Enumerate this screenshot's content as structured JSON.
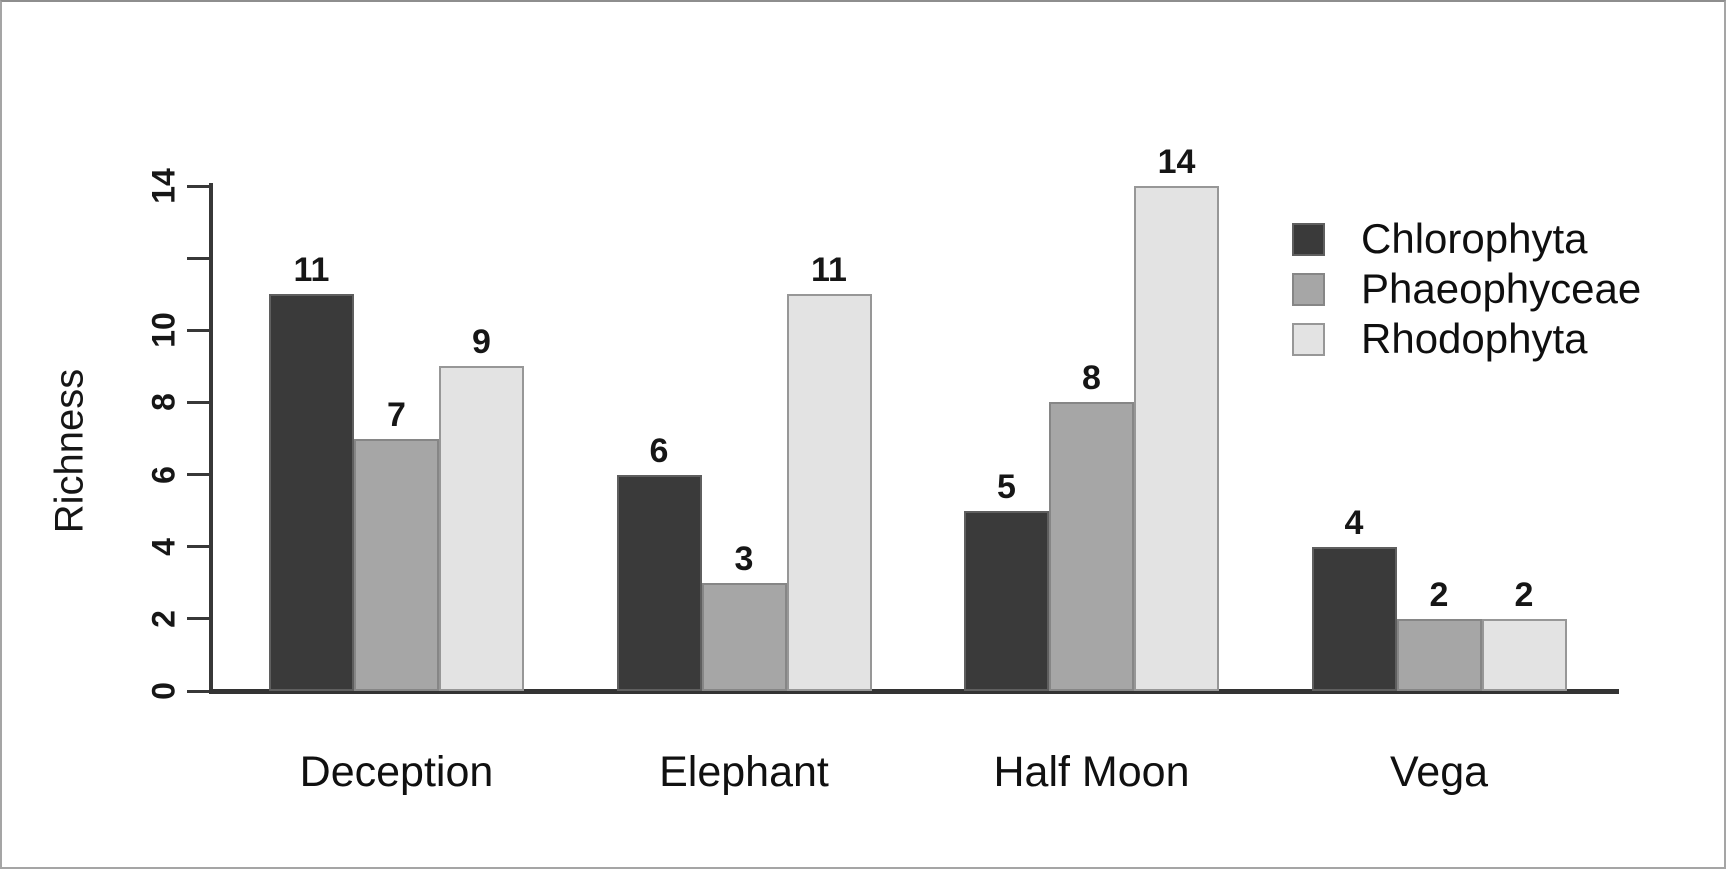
{
  "chart_data": {
    "type": "bar",
    "title": "",
    "xlabel": "",
    "ylabel": "Richness",
    "categories": [
      "Deception",
      "Elephant",
      "Half Moon",
      "Vega"
    ],
    "series": [
      {
        "name": "Chlorophyta",
        "color": "#3a3a3a",
        "values": [
          11,
          6,
          5,
          4
        ]
      },
      {
        "name": "Phaeophyceae",
        "color": "#a6a6a6",
        "values": [
          7,
          3,
          8,
          2
        ]
      },
      {
        "name": "Rhodophyta",
        "color": "#e3e3e3",
        "values": [
          9,
          11,
          14,
          2
        ]
      }
    ],
    "ylim": [
      0,
      14
    ],
    "yticks": [
      0,
      2,
      4,
      6,
      8,
      10,
      12,
      14
    ],
    "ytick_labels": [
      "0",
      "2",
      "4",
      "6",
      "8",
      "10",
      "",
      "14"
    ],
    "bar_value_labels_shown": true,
    "legend_position": "top-right",
    "grid": false,
    "axis_color": "#383838",
    "text_color": "#111111",
    "background_color": "#ffffff"
  }
}
